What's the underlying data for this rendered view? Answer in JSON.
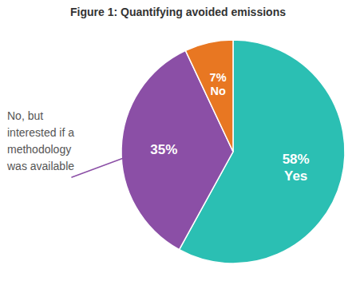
{
  "chart_data": {
    "type": "pie",
    "title": "Figure 1: Quantifying avoided emissions",
    "categories": [
      "Yes",
      null,
      "No"
    ],
    "values": [
      58,
      35,
      7
    ],
    "value_labels": [
      "58%",
      "35%",
      "7%"
    ],
    "colors": [
      "#2BBFB3",
      "#8B4FA6",
      "#E87722"
    ],
    "data_labels": true,
    "annotation": "No, but\ninterested if a\nmethodology\nwas available"
  }
}
